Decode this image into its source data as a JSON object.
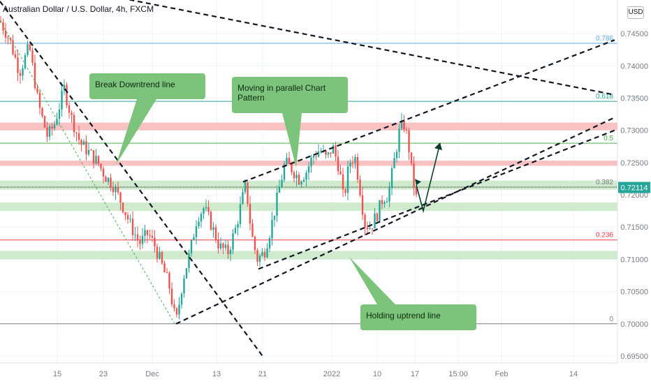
{
  "header": {
    "symbol_title": "Australian Dollar / U.S. Dollar, 4h, FXCM",
    "currency_button": "USD"
  },
  "chart_data": {
    "type": "candlestick",
    "title": "Australian Dollar / U.S. Dollar, 4h, FXCM",
    "ylim": [
      0.6947,
      0.751
    ],
    "y_ticks": [
      "0.74500",
      "0.74000",
      "0.73500",
      "0.73000",
      "0.72500",
      "0.72000",
      "0.71500",
      "0.71000",
      "0.70500",
      "0.70000",
      "0.69500"
    ],
    "x_ticks": [
      "15",
      "23",
      "Dec",
      "13",
      "21",
      "2022",
      "10",
      "17",
      "15:00",
      "Feb",
      "14"
    ],
    "current_price": "0.72114",
    "price_path": [
      [
        0,
        0.747
      ],
      [
        14,
        0.744
      ],
      [
        28,
        0.739
      ],
      [
        42,
        0.743
      ],
      [
        55,
        0.734
      ],
      [
        68,
        0.729
      ],
      [
        78,
        0.731
      ],
      [
        92,
        0.7365
      ],
      [
        102,
        0.732
      ],
      [
        115,
        0.728
      ],
      [
        128,
        0.7265
      ],
      [
        140,
        0.725
      ],
      [
        150,
        0.723
      ],
      [
        162,
        0.7215
      ],
      [
        175,
        0.7185
      ],
      [
        188,
        0.715
      ],
      [
        200,
        0.7125
      ],
      [
        212,
        0.714
      ],
      [
        222,
        0.712
      ],
      [
        232,
        0.709
      ],
      [
        242,
        0.706
      ],
      [
        252,
        0.7
      ],
      [
        262,
        0.707
      ],
      [
        272,
        0.711
      ],
      [
        282,
        0.7165
      ],
      [
        292,
        0.718
      ],
      [
        302,
        0.7155
      ],
      [
        314,
        0.712
      ],
      [
        326,
        0.711
      ],
      [
        338,
        0.715
      ],
      [
        346,
        0.719
      ],
      [
        352,
        0.7215
      ],
      [
        360,
        0.714
      ],
      [
        368,
        0.71
      ],
      [
        378,
        0.711
      ],
      [
        388,
        0.715
      ],
      [
        398,
        0.72
      ],
      [
        408,
        0.725
      ],
      [
        418,
        0.724
      ],
      [
        428,
        0.7225
      ],
      [
        438,
        0.7235
      ],
      [
        448,
        0.726
      ],
      [
        458,
        0.727
      ],
      [
        468,
        0.7255
      ],
      [
        476,
        0.7275
      ],
      [
        486,
        0.724
      ],
      [
        492,
        0.719
      ],
      [
        500,
        0.725
      ],
      [
        508,
        0.726
      ],
      [
        516,
        0.7205
      ],
      [
        522,
        0.7155
      ],
      [
        530,
        0.715
      ],
      [
        540,
        0.717
      ],
      [
        548,
        0.7195
      ],
      [
        556,
        0.72
      ],
      [
        564,
        0.725
      ],
      [
        572,
        0.73
      ],
      [
        578,
        0.731
      ],
      [
        584,
        0.7285
      ],
      [
        590,
        0.723
      ],
      [
        596,
        0.7195
      ]
    ],
    "fib_levels": [
      {
        "label": "0.786",
        "value": 0.7435,
        "color": "#5aa9e6"
      },
      {
        "label": "0.618",
        "value": 0.7345,
        "color": "#26a69a"
      },
      {
        "label": "0.5",
        "value": 0.728,
        "color": "#4caf50"
      },
      {
        "label": "0.382",
        "value": 0.7212,
        "color": "#787b86"
      },
      {
        "label": "0.236",
        "value": 0.713,
        "color": "#f23645"
      },
      {
        "label": "0",
        "value": 0.7,
        "color": "#787b86"
      }
    ],
    "zones": [
      {
        "from": 0.73,
        "to": 0.7312,
        "color": "#f7b7b9"
      },
      {
        "from": 0.7245,
        "to": 0.7253,
        "color": "#f7b7b9"
      },
      {
        "from": 0.7208,
        "to": 0.7222,
        "color": "#c7e6c4"
      },
      {
        "from": 0.7175,
        "to": 0.7188,
        "color": "#c7e6c4"
      },
      {
        "from": 0.71,
        "to": 0.7113,
        "color": "#c7e6c4"
      }
    ],
    "trendlines": [
      {
        "name": "downtrend-line",
        "x1": 0,
        "y1": 0.75,
        "x2": 378,
        "y2": 0.6947
      },
      {
        "name": "thin-downtrend-line",
        "x1": 0,
        "y1": 0.747,
        "x2": 250,
        "y2": 0.7
      },
      {
        "name": "upper-channel-line",
        "x1": 348,
        "y1": 0.722,
        "x2": 880,
        "y2": 0.744
      },
      {
        "name": "lower-channel-line",
        "x1": 252,
        "y1": 0.7,
        "x2": 880,
        "y2": 0.732
      },
      {
        "name": "second-channel-line",
        "x1": 370,
        "y1": 0.7085,
        "x2": 880,
        "y2": 0.73
      },
      {
        "name": "top-descending-line",
        "x1": 150,
        "y1": 0.751,
        "x2": 880,
        "y2": 0.7355
      }
    ],
    "arrow": {
      "x1": 596,
      "y1": 0.7215,
      "xm": 606,
      "ym": 0.7175,
      "x2": 630,
      "y2": 0.728
    },
    "annotations": [
      {
        "text": [
          "Break Downtrend line"
        ]
      },
      {
        "text": [
          "Moving in parallel Chart",
          "Pattern"
        ]
      },
      {
        "text": [
          "Holding uptrend line"
        ]
      }
    ]
  }
}
